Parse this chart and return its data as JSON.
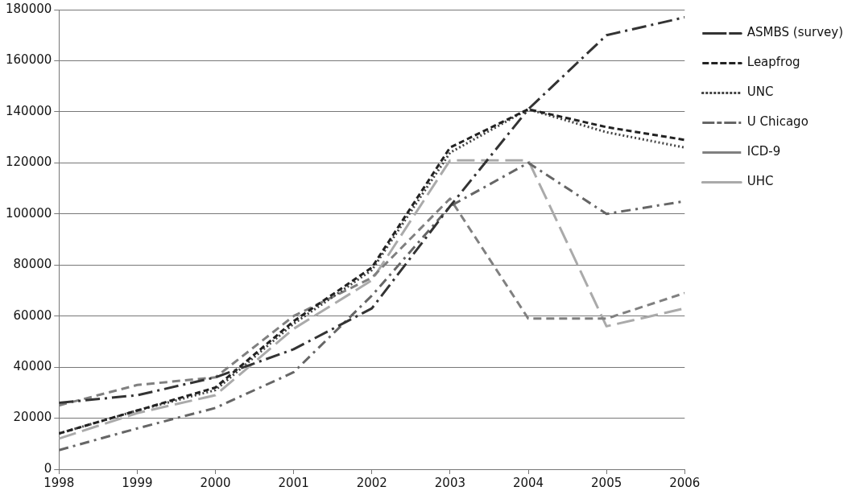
{
  "chart_data": {
    "type": "line",
    "x": [
      1998,
      1999,
      2000,
      2001,
      2002,
      2003,
      2004,
      2005,
      2006
    ],
    "xlim": [
      1998,
      2006
    ],
    "xticks": [
      1998,
      1999,
      2000,
      2001,
      2002,
      2003,
      2004,
      2005,
      2006
    ],
    "ylim": [
      0,
      180000
    ],
    "yticks": [
      0,
      20000,
      40000,
      60000,
      80000,
      100000,
      120000,
      140000,
      160000,
      180000
    ],
    "grid": "y",
    "legend": "right",
    "marker": "none",
    "series": [
      {
        "name": "ASMBS (survey)",
        "color": "#333333",
        "line_style": "dashed",
        "values": [
          26000,
          29000,
          36000,
          47000,
          63000,
          103000,
          141000,
          170000,
          177000
        ]
      },
      {
        "name": "Leapfrog",
        "color": "#222222",
        "line_style": "dashed",
        "values": [
          14000,
          23000,
          32000,
          58000,
          79000,
          126000,
          141000,
          134000,
          129000
        ]
      },
      {
        "name": "UNC",
        "color": "#444444",
        "line_style": "dotted",
        "values": [
          14000,
          23000,
          31000,
          57000,
          78000,
          124000,
          141000,
          132000,
          126000
        ]
      },
      {
        "name": "U Chicago",
        "color": "#666666",
        "line_style": "dashed",
        "values": [
          7500,
          16000,
          24000,
          38000,
          68000,
          103000,
          120000,
          100000,
          105000
        ]
      },
      {
        "name": "ICD-9",
        "color": "#808080",
        "line_style": "dashed",
        "values": [
          25000,
          33000,
          36000,
          60000,
          75000,
          106000,
          59000,
          59000,
          69000
        ]
      },
      {
        "name": "UHC",
        "color": "#aaaaaa",
        "line_style": "dashed",
        "values": [
          12000,
          22000,
          29000,
          55000,
          74000,
          121000,
          121000,
          56000,
          63000
        ]
      }
    ]
  }
}
